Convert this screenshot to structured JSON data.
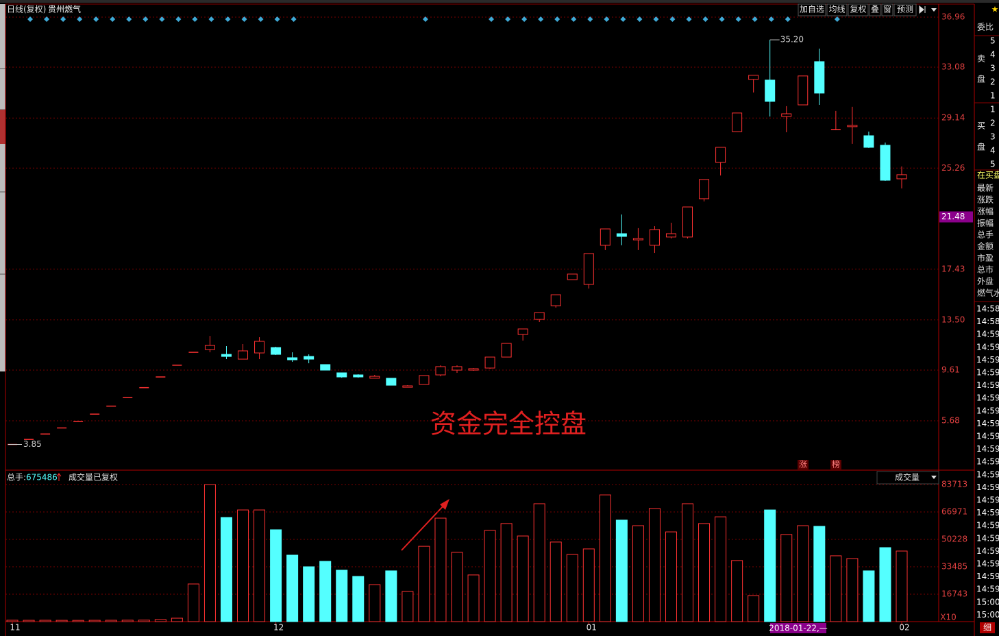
{
  "header": {
    "period": "日线(复权)",
    "stock": "贵州燃气",
    "buttons": [
      "加自选",
      "均线",
      "复权",
      "叠",
      "窗",
      "预测"
    ]
  },
  "annotation": "资金完全控盘",
  "cursor_date": "2018-01-22,—",
  "tags": [
    "涨",
    "榜"
  ],
  "chart_data": [
    {
      "type": "candlestick",
      "categories": [
        "11",
        null,
        null,
        null,
        null,
        null,
        null,
        null,
        null,
        null,
        null,
        null,
        null,
        null,
        null,
        null,
        "12",
        null,
        null,
        null,
        null,
        null,
        null,
        null,
        null,
        null,
        null,
        null,
        null,
        null,
        null,
        null,
        null,
        null,
        null,
        "01",
        null,
        null,
        null,
        null,
        null,
        null,
        null,
        null,
        null,
        null,
        null,
        null,
        null,
        null,
        null,
        null,
        null,
        null,
        "02"
      ],
      "open": [
        3.85,
        4.24,
        4.66,
        5.13,
        5.64,
        6.2,
        6.82,
        7.5,
        8.25,
        9.08,
        9.99,
        10.99,
        11.21,
        10.83,
        10.46,
        10.94,
        11.36,
        10.57,
        10.67,
        10.04,
        9.4,
        9.24,
        8.98,
        8.98,
        8.28,
        8.5,
        9.24,
        9.61,
        9.61,
        9.77,
        10.62,
        12.37,
        13.54,
        14.6,
        16.62,
        16.25,
        19.28,
        20.18,
        19.7,
        19.28,
        19.92,
        19.92,
        22.89,
        25.7,
        28.09,
        32.13,
        32.08,
        29.26,
        30.16,
        33.51,
        28.25,
        28.47,
        27.77,
        27.03,
        24.43
      ],
      "high": [
        3.85,
        4.24,
        4.66,
        5.13,
        5.64,
        6.2,
        6.82,
        7.5,
        8.25,
        9.08,
        9.99,
        10.99,
        12.26,
        11.47,
        11.63,
        12.16,
        11.42,
        10.99,
        10.83,
        10.04,
        9.4,
        9.29,
        9.24,
        8.98,
        8.44,
        9.19,
        9.98,
        9.98,
        9.77,
        10.62,
        11.68,
        12.8,
        14.07,
        15.45,
        17.05,
        18.64,
        20.55,
        21.67,
        20.61,
        20.76,
        21.03,
        22.25,
        24.38,
        26.87,
        29.53,
        32.45,
        35.2,
        30.06,
        32.4,
        34.52,
        29.69,
        30.01,
        28.09,
        27.24,
        25.39
      ],
      "low": [
        3.85,
        4.24,
        4.66,
        5.13,
        5.64,
        6.2,
        6.82,
        7.5,
        8.25,
        9.08,
        9.99,
        10.99,
        10.99,
        10.46,
        10.46,
        10.46,
        10.78,
        10.25,
        10.14,
        9.61,
        9.02,
        9.02,
        8.98,
        8.44,
        8.28,
        8.5,
        9.13,
        9.4,
        9.56,
        9.72,
        10.62,
        11.9,
        13.33,
        14.45,
        16.62,
        15.93,
        18.91,
        19.28,
        18.91,
        18.69,
        19.81,
        19.81,
        22.68,
        24.69,
        28.09,
        31.12,
        29.26,
        28.04,
        30.16,
        30.16,
        28.2,
        27.14,
        26.82,
        24.27,
        23.69
      ],
      "close": [
        3.85,
        4.24,
        4.66,
        5.13,
        5.64,
        6.2,
        6.82,
        7.5,
        8.25,
        9.08,
        9.99,
        10.99,
        11.52,
        10.67,
        11.1,
        11.84,
        10.83,
        10.41,
        10.46,
        9.61,
        9.08,
        9.08,
        9.13,
        8.44,
        8.39,
        9.19,
        9.88,
        9.88,
        9.72,
        10.62,
        11.68,
        12.8,
        14.07,
        15.45,
        17.05,
        18.64,
        20.55,
        19.97,
        19.81,
        20.5,
        20.18,
        22.25,
        24.38,
        26.87,
        29.53,
        32.45,
        30.43,
        29.47,
        32.4,
        31.07,
        28.25,
        28.57,
        26.87,
        24.32,
        24.75
      ],
      "ylim": [
        1.86,
        37.86
      ],
      "yticks": [
        5.68,
        9.61,
        {
          "value": 13.5,
          "label": "13.50"
        },
        17.43,
        25.26,
        29.14,
        33.08,
        36.96
      ],
      "price_marker": 21.48,
      "max_label": {
        "value": 35.2,
        "label": "35.20"
      },
      "min_label": 3.85,
      "up_color": "#ff3232",
      "down_color": "#54ffff",
      "grid": true,
      "signal_indices": [
        1,
        2,
        3,
        4,
        5,
        6,
        7,
        8,
        9,
        10,
        11,
        12,
        13,
        14,
        15,
        16,
        17,
        25,
        29,
        30,
        31,
        32,
        33,
        34,
        35,
        36,
        37,
        38,
        39,
        40,
        41,
        42,
        43,
        44,
        45,
        46,
        47,
        50
      ],
      "signal_color": "#3fa9d6"
    },
    {
      "type": "bar",
      "values": [
        840,
        800,
        820,
        780,
        760,
        800,
        820,
        860,
        900,
        1260,
        2090,
        23000,
        83713,
        63600,
        68200,
        68200,
        56100,
        40600,
        33500,
        36800,
        31400,
        27600,
        22600,
        31000,
        18400,
        46000,
        63200,
        42300,
        28500,
        55700,
        59900,
        52300,
        72000,
        48600,
        41000,
        44400,
        77400,
        62000,
        58600,
        69100,
        54800,
        72000,
        59900,
        64000,
        37300,
        15900,
        68200,
        53200,
        58600,
        58200,
        40200,
        38500,
        31000,
        45200,
        43100
      ],
      "ylim": [
        0,
        87900
      ],
      "yticks": [
        16743,
        33485,
        50228,
        66971,
        83713
      ],
      "total_label": "总手:",
      "total": 675486,
      "note": "成交量已复权",
      "indicator": "成交量",
      "unit_label": "X10",
      "grid": true
    }
  ],
  "side_panel": {
    "title": "委比",
    "sell_label": [
      "卖",
      "盘"
    ],
    "sell_levels": [
      5,
      4,
      3,
      2,
      1
    ],
    "buy_label": [
      "买",
      "盘"
    ],
    "buy_levels": [
      1,
      2,
      3,
      4,
      5
    ],
    "status": "在买盘",
    "fields": [
      "最新",
      "涨跌",
      "涨幅",
      "振幅",
      "总手",
      "金额",
      "市盈",
      "总市",
      "外盘"
    ],
    "industry": "燃气水",
    "times": [
      "14:58",
      "14:58",
      "14:59",
      "14:59",
      "14:59",
      "14:59",
      "14:59",
      "14:59",
      "14:59",
      "14:59",
      "14:59",
      "14:59",
      "14:59",
      "14:59",
      "14:59",
      "14:59",
      "14:59",
      "14:59",
      "14:59",
      "14:59",
      "14:59",
      "14:59",
      "14:59",
      "15:00",
      "15:00"
    ],
    "detail_tab": "细"
  }
}
